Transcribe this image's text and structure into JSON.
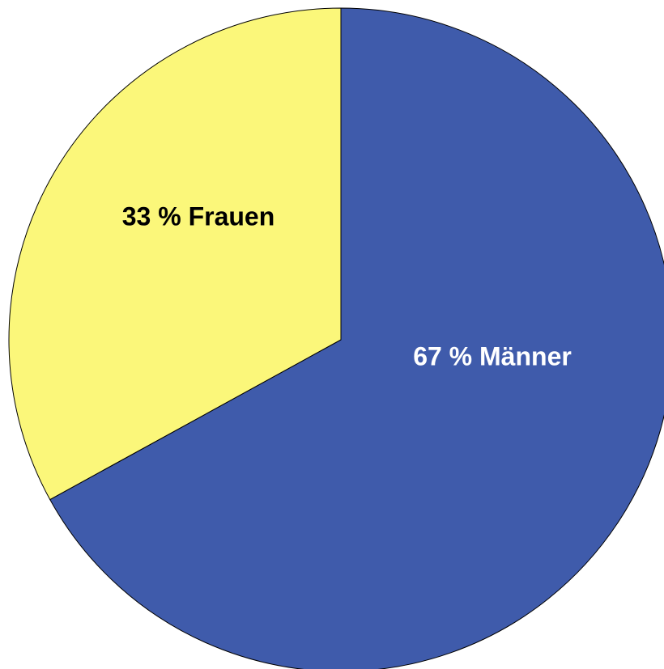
{
  "chart_data": {
    "type": "pie",
    "values": [
      67,
      33
    ],
    "value_labels": [
      "67 % Männer",
      "33 % Frauen"
    ],
    "colors": [
      "#3f5bab",
      "#fbf77a"
    ],
    "label_colors": [
      "#ffffff",
      "#000000"
    ]
  }
}
